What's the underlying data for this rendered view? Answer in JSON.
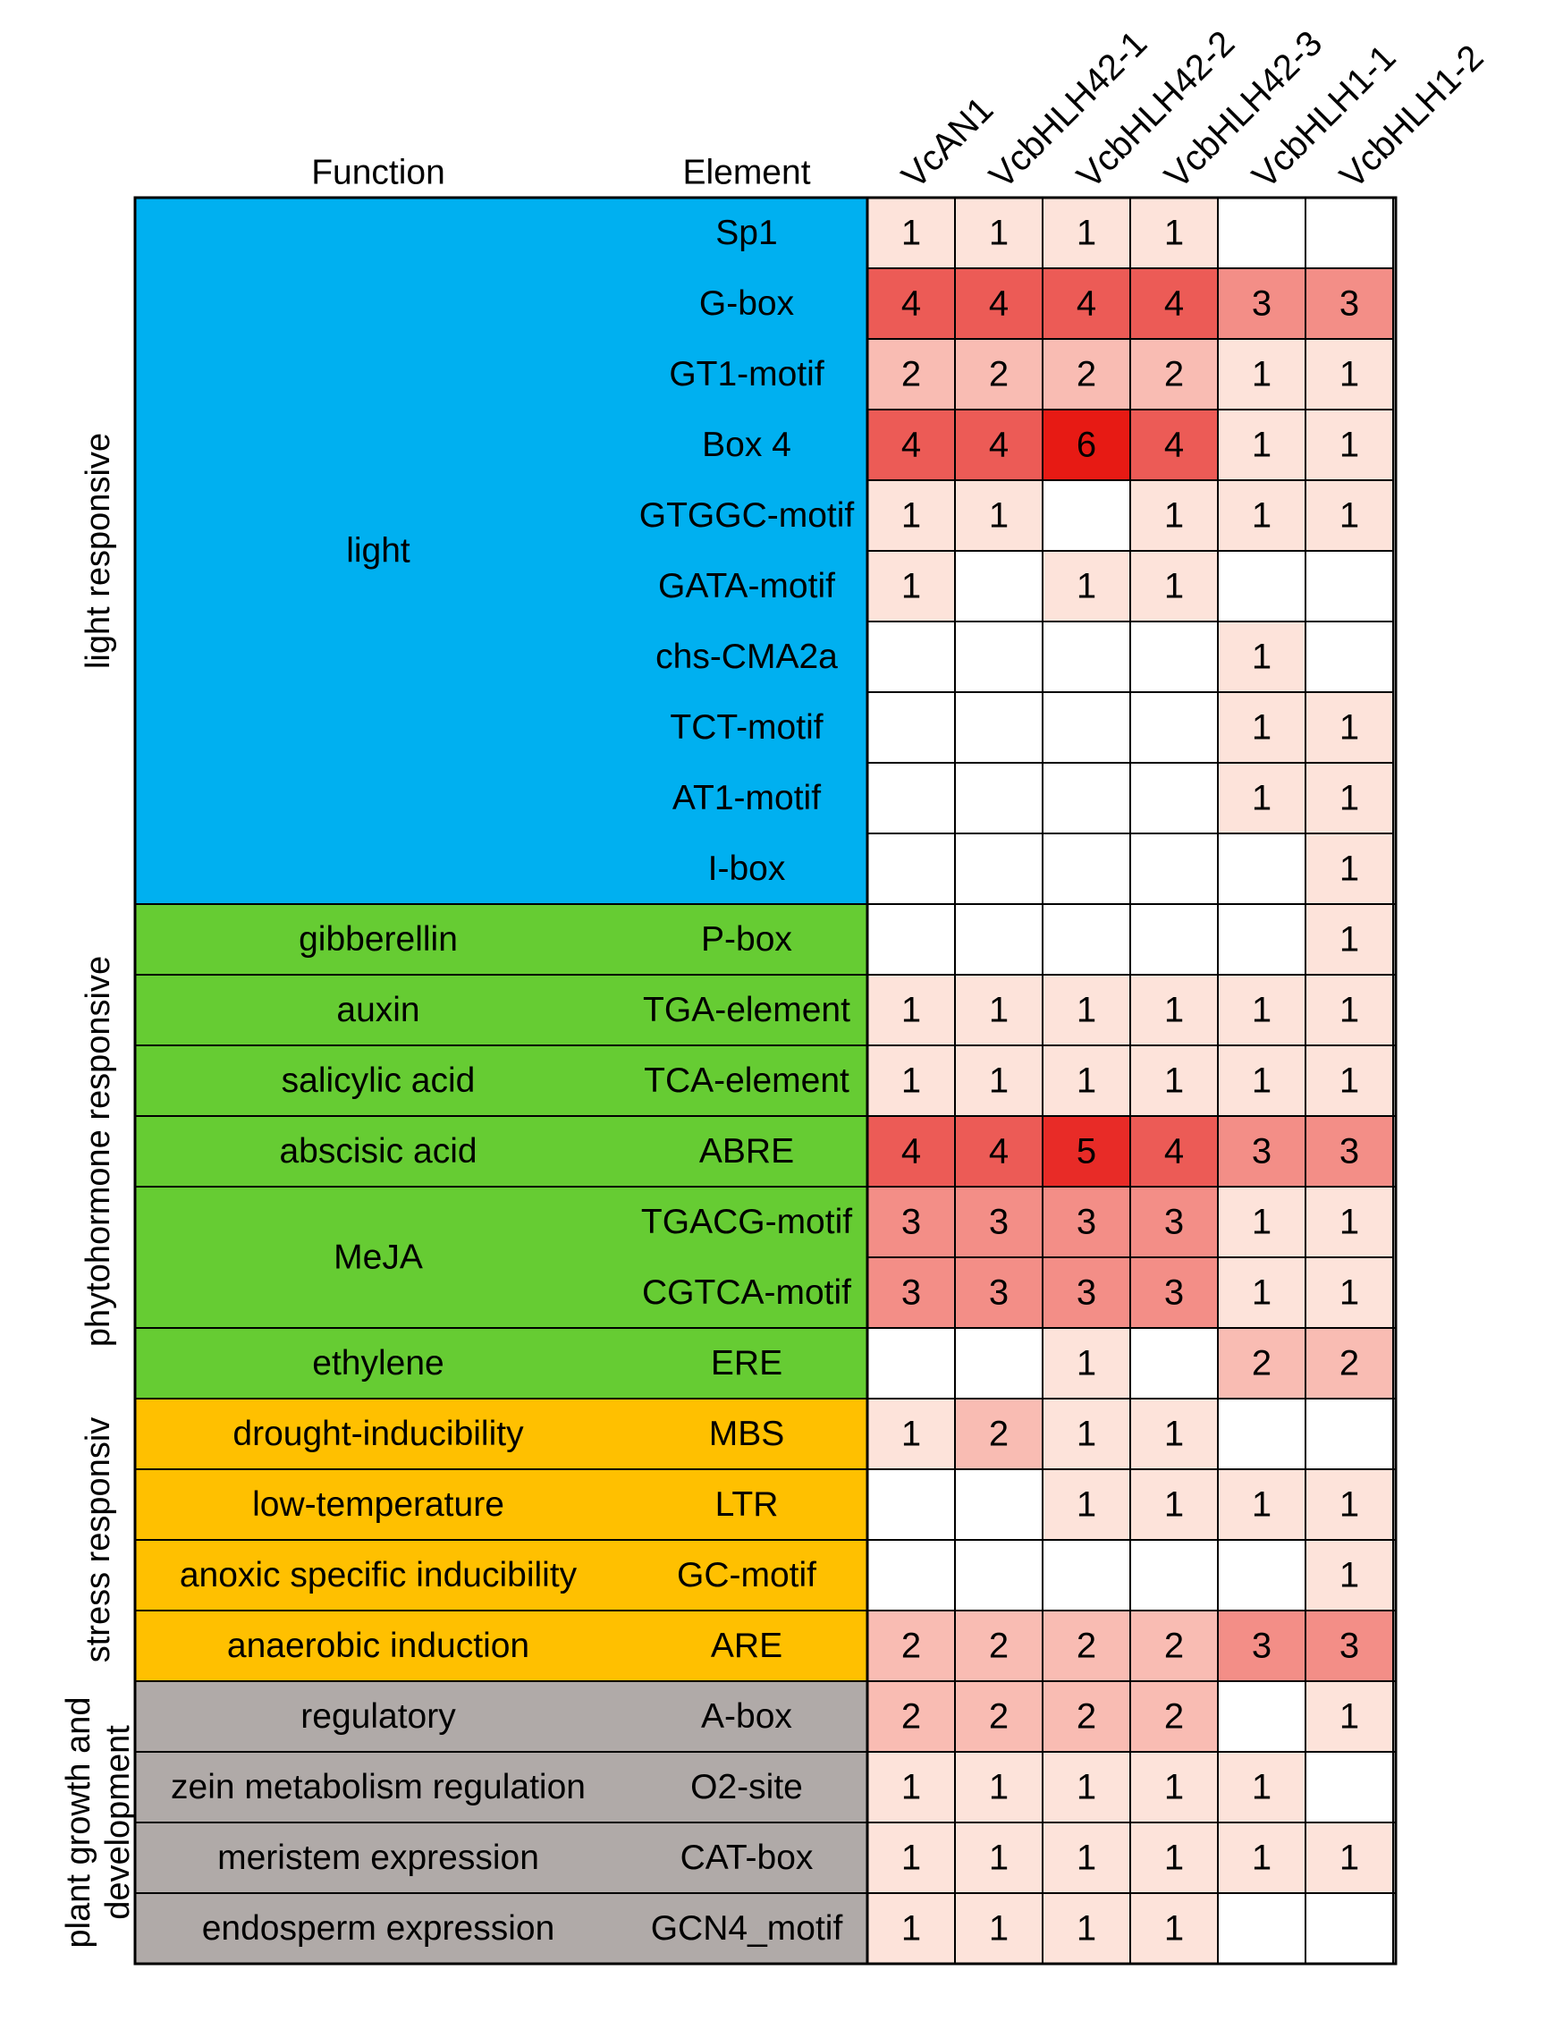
{
  "chart_data": {
    "type": "heatmap",
    "headers": {
      "function": "Function",
      "element": "Element"
    },
    "columns": [
      "VcAN1",
      "VcbHLH42-1",
      "VcbHLH42-2",
      "VcbHLH42-3",
      "VcbHLH1-1",
      "VcbHLH1-2"
    ],
    "groups": [
      {
        "label": "light responsive",
        "color": "#00b0f0",
        "functions": [
          {
            "label": "light",
            "elements": [
              {
                "name": "Sp1",
                "values": [
                  1,
                  1,
                  1,
                  1,
                  null,
                  null
                ]
              },
              {
                "name": "G-box",
                "values": [
                  4,
                  4,
                  4,
                  4,
                  3,
                  3
                ]
              },
              {
                "name": "GT1-motif",
                "values": [
                  2,
                  2,
                  2,
                  2,
                  1,
                  1
                ]
              },
              {
                "name": "Box 4",
                "values": [
                  4,
                  4,
                  6,
                  4,
                  1,
                  1
                ]
              },
              {
                "name": "GTGGC-motif",
                "values": [
                  1,
                  1,
                  null,
                  1,
                  1,
                  1
                ]
              },
              {
                "name": "GATA-motif",
                "values": [
                  1,
                  null,
                  1,
                  1,
                  null,
                  null
                ]
              },
              {
                "name": "chs-CMA2a",
                "values": [
                  null,
                  null,
                  null,
                  null,
                  1,
                  null
                ]
              },
              {
                "name": "TCT-motif",
                "values": [
                  null,
                  null,
                  null,
                  null,
                  1,
                  1
                ]
              },
              {
                "name": "AT1-motif",
                "values": [
                  null,
                  null,
                  null,
                  null,
                  1,
                  1
                ]
              },
              {
                "name": "I-box",
                "values": [
                  null,
                  null,
                  null,
                  null,
                  null,
                  1
                ]
              }
            ]
          }
        ]
      },
      {
        "label": "phytohormone responsive",
        "color": "#66cc33",
        "functions": [
          {
            "label": "gibberellin",
            "elements": [
              {
                "name": "P-box",
                "values": [
                  null,
                  null,
                  null,
                  null,
                  null,
                  1
                ]
              }
            ]
          },
          {
            "label": "auxin",
            "elements": [
              {
                "name": "TGA-element",
                "values": [
                  1,
                  1,
                  1,
                  1,
                  1,
                  1
                ]
              }
            ]
          },
          {
            "label": "salicylic acid",
            "elements": [
              {
                "name": "TCA-element",
                "values": [
                  1,
                  1,
                  1,
                  1,
                  1,
                  1
                ]
              }
            ]
          },
          {
            "label": "abscisic acid",
            "elements": [
              {
                "name": "ABRE",
                "values": [
                  4,
                  4,
                  5,
                  4,
                  3,
                  3
                ]
              }
            ]
          },
          {
            "label": "MeJA",
            "elements": [
              {
                "name": "TGACG-motif",
                "values": [
                  3,
                  3,
                  3,
                  3,
                  1,
                  1
                ]
              },
              {
                "name": "CGTCA-motif",
                "values": [
                  3,
                  3,
                  3,
                  3,
                  1,
                  1
                ]
              }
            ]
          },
          {
            "label": "ethylene",
            "elements": [
              {
                "name": "ERE",
                "values": [
                  null,
                  null,
                  1,
                  null,
                  2,
                  2
                ]
              }
            ]
          }
        ]
      },
      {
        "label": "stress responsiv",
        "color": "#ffc000",
        "functions": [
          {
            "label": "drought-inducibility",
            "elements": [
              {
                "name": "MBS",
                "values": [
                  1,
                  2,
                  1,
                  1,
                  null,
                  null
                ]
              }
            ]
          },
          {
            "label": "low-temperature",
            "elements": [
              {
                "name": "LTR",
                "values": [
                  null,
                  null,
                  1,
                  1,
                  1,
                  1
                ]
              }
            ]
          },
          {
            "label": "anoxic specific inducibility",
            "elements": [
              {
                "name": "GC-motif",
                "values": [
                  null,
                  null,
                  null,
                  null,
                  null,
                  1
                ]
              }
            ]
          },
          {
            "label": "anaerobic induction",
            "elements": [
              {
                "name": "ARE",
                "values": [
                  2,
                  2,
                  2,
                  2,
                  3,
                  3
                ]
              }
            ]
          }
        ]
      },
      {
        "label": "plant growth and\ndevelopment",
        "color": "#b0aaa8",
        "functions": [
          {
            "label": "regulatory",
            "elements": [
              {
                "name": "A-box",
                "values": [
                  2,
                  2,
                  2,
                  2,
                  null,
                  1
                ]
              }
            ]
          },
          {
            "label": "zein metabolism regulation",
            "elements": [
              {
                "name": "O2-site",
                "values": [
                  1,
                  1,
                  1,
                  1,
                  1,
                  null
                ]
              }
            ]
          },
          {
            "label": "meristem expression",
            "elements": [
              {
                "name": "CAT-box",
                "values": [
                  1,
                  1,
                  1,
                  1,
                  1,
                  1
                ]
              }
            ]
          },
          {
            "label": "endosperm expression",
            "elements": [
              {
                "name": "GCN4_motif",
                "values": [
                  1,
                  1,
                  1,
                  1,
                  null,
                  null
                ]
              }
            ]
          }
        ]
      }
    ],
    "colors": {
      "1": "#fde3da",
      "2": "#f9bcb3",
      "3": "#f38e87",
      "4": "#ec5b56",
      "5": "#e82b27",
      "6": "#e71a14"
    }
  }
}
